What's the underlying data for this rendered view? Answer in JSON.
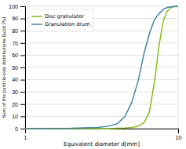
{
  "chart_data": {
    "type": "line",
    "xlabel": "Equivalent diameter d[mm]",
    "ylabel": "Sum of the particle-size distributions Q₃(d) [%]",
    "x": [
      1.0,
      2.0,
      3.0,
      3.5,
      4.0,
      4.5,
      5.0,
      5.5,
      6.0,
      6.5,
      7.0,
      7.5,
      8.0,
      8.5,
      9.0,
      9.5,
      10.0
    ],
    "series": [
      {
        "name": "Disc granulator",
        "color": "#88bb20",
        "values": [
          0,
          0,
          0,
          0,
          0.3,
          0.5,
          1.0,
          2.0,
          5.0,
          14.0,
          38.0,
          68.0,
          88.0,
          96.0,
          99.0,
          99.8,
          100.0
        ]
      },
      {
        "name": "Granulation drum",
        "color": "#4488a0",
        "values": [
          0,
          0.3,
          1.0,
          2.0,
          4.0,
          10.0,
          22.0,
          40.0,
          62.0,
          78.0,
          89.0,
          94.0,
          97.5,
          99.0,
          99.5,
          100.0,
          100.0
        ]
      }
    ],
    "xlim": [
      1,
      10
    ],
    "ylim": [
      0,
      100
    ],
    "xticks": [
      1,
      10
    ],
    "yticks": [
      0,
      10,
      20,
      30,
      40,
      50,
      60,
      70,
      80,
      90,
      100
    ],
    "log": "x",
    "grid": true,
    "legend": "upper left"
  }
}
